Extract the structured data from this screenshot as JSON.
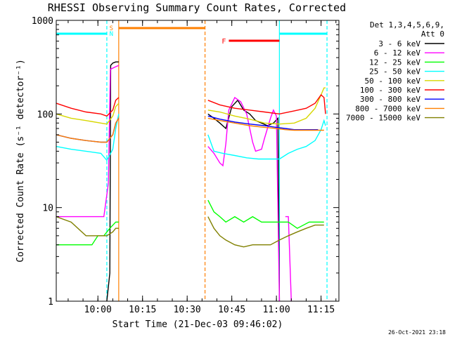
{
  "chart_data": {
    "type": "line",
    "title": "RHESSI Observing Summary Count Rates, Corrected",
    "xlabel": "Start Time (21-Dec-03 09:46:02)",
    "ylabel": "Corrected Count Rate (s⁻¹ detector⁻¹)",
    "y_scale": "log",
    "xlim": [
      0,
      95
    ],
    "ylim": [
      1,
      1000
    ],
    "x_ticks": [
      {
        "value": 14,
        "label": "10:00"
      },
      {
        "value": 29,
        "label": "10:15"
      },
      {
        "value": 44,
        "label": "10:30"
      },
      {
        "value": 59,
        "label": "10:45"
      },
      {
        "value": 74,
        "label": "11:00"
      },
      {
        "value": 89,
        "label": "11:15"
      }
    ],
    "y_ticks": [
      {
        "value": 1,
        "label": "1"
      },
      {
        "value": 10,
        "label": "10"
      },
      {
        "value": 100,
        "label": "100"
      },
      {
        "value": 1000,
        "label": "1000"
      }
    ],
    "legend_header": [
      "Det 1,3,4,5,6,9,",
      "Att 0"
    ],
    "series": [
      {
        "name": "3 - 6 keV",
        "color": "#000000",
        "segments": [
          [
            [
              17,
              1
            ],
            [
              18,
              2
            ],
            [
              18.3,
              330
            ],
            [
              19,
              350
            ],
            [
              20,
              360
            ],
            [
              21,
              360
            ]
          ],
          [
            [
              51,
              100
            ],
            [
              53,
              90
            ],
            [
              55,
              80
            ],
            [
              57,
              70
            ],
            [
              59,
              120
            ],
            [
              61,
              140
            ],
            [
              63,
              110
            ],
            [
              65,
              100
            ],
            [
              67,
              85
            ],
            [
              69,
              80
            ],
            [
              71,
              75
            ],
            [
              73,
              80
            ],
            [
              74.5,
              90
            ],
            [
              75,
              1
            ]
          ]
        ]
      },
      {
        "name": "6 - 12 keV",
        "color": "#ff00ff",
        "segments": [
          [
            [
              0,
              8
            ],
            [
              16,
              8
            ],
            [
              17.5,
              18
            ],
            [
              18.2,
              300
            ],
            [
              20,
              320
            ],
            [
              21,
              330
            ]
          ],
          [
            [
              51,
              45
            ],
            [
              53,
              38
            ],
            [
              55,
              30
            ],
            [
              56,
              28
            ],
            [
              57,
              48
            ],
            [
              58,
              110
            ],
            [
              60,
              150
            ],
            [
              62,
              135
            ],
            [
              64,
              100
            ],
            [
              66,
              50
            ],
            [
              67,
              40
            ],
            [
              69,
              42
            ],
            [
              70,
              55
            ],
            [
              72,
              90
            ],
            [
              73,
              110
            ],
            [
              74,
              95
            ],
            [
              75,
              1
            ]
          ],
          [
            [
              77,
              8
            ],
            [
              78,
              8
            ],
            [
              79,
              1
            ]
          ]
        ]
      },
      {
        "name": "12 - 25 keV",
        "color": "#00ff00",
        "segments": [
          [
            [
              0,
              4
            ],
            [
              12,
              4
            ],
            [
              14,
              5
            ],
            [
              16,
              5
            ],
            [
              18,
              6
            ],
            [
              20,
              7
            ],
            [
              21,
              7
            ]
          ],
          [
            [
              51,
              12
            ],
            [
              53,
              9
            ],
            [
              55,
              8
            ],
            [
              57,
              7
            ],
            [
              60,
              8
            ],
            [
              63,
              7
            ],
            [
              66,
              8
            ],
            [
              69,
              7
            ],
            [
              72,
              7
            ],
            [
              75,
              7
            ],
            [
              78,
              7
            ],
            [
              81,
              6
            ],
            [
              85,
              7
            ],
            [
              88,
              7
            ],
            [
              90,
              7
            ]
          ]
        ]
      },
      {
        "name": "25 - 50 keV",
        "color": "#00ffff",
        "segments": [
          [
            [
              0,
              45
            ],
            [
              5,
              42
            ],
            [
              10,
              40
            ],
            [
              15,
              38
            ],
            [
              17,
              32
            ],
            [
              19,
              42
            ],
            [
              20,
              70
            ],
            [
              21,
              100
            ]
          ],
          [
            [
              51,
              60
            ],
            [
              53,
              40
            ],
            [
              56,
              38
            ],
            [
              60,
              36
            ],
            [
              64,
              34
            ],
            [
              68,
              33
            ],
            [
              72,
              33
            ],
            [
              75,
              33
            ],
            [
              78,
              38
            ],
            [
              81,
              42
            ],
            [
              84,
              45
            ],
            [
              87,
              52
            ],
            [
              89,
              68
            ],
            [
              90,
              85
            ],
            [
              90.5,
              75
            ]
          ]
        ]
      },
      {
        "name": "50 - 100 keV",
        "color": "#d7d700",
        "segments": [
          [
            [
              0,
              100
            ],
            [
              5,
              90
            ],
            [
              10,
              85
            ],
            [
              15,
              80
            ],
            [
              17,
              78
            ],
            [
              19,
              95
            ],
            [
              20,
              120
            ],
            [
              21,
              130
            ]
          ],
          [
            [
              51,
              110
            ],
            [
              55,
              105
            ],
            [
              60,
              95
            ],
            [
              65,
              88
            ],
            [
              70,
              80
            ],
            [
              75,
              78
            ],
            [
              80,
              80
            ],
            [
              84,
              90
            ],
            [
              87,
              115
            ],
            [
              89,
              160
            ],
            [
              90,
              190
            ],
            [
              90.5,
              190
            ]
          ]
        ]
      },
      {
        "name": "100 - 300 keV",
        "color": "#ff0000",
        "segments": [
          [
            [
              0,
              130
            ],
            [
              5,
              115
            ],
            [
              10,
              105
            ],
            [
              15,
              100
            ],
            [
              17,
              95
            ],
            [
              19,
              110
            ],
            [
              20,
              140
            ],
            [
              21,
              150
            ]
          ],
          [
            [
              51,
              140
            ],
            [
              55,
              125
            ],
            [
              60,
              115
            ],
            [
              65,
              110
            ],
            [
              70,
              105
            ],
            [
              75,
              100
            ],
            [
              80,
              108
            ],
            [
              84,
              115
            ],
            [
              87,
              130
            ],
            [
              89,
              160
            ],
            [
              90,
              150
            ],
            [
              90.5,
              100
            ]
          ]
        ]
      },
      {
        "name": "300 - 800 keV",
        "color": "#0000ff",
        "segments": [
          [
            [
              0,
              60
            ],
            [
              5,
              55
            ],
            [
              10,
              52
            ],
            [
              15,
              50
            ],
            [
              17,
              50
            ],
            [
              19,
              60
            ],
            [
              20,
              80
            ],
            [
              21,
              90
            ]
          ],
          [
            [
              51,
              95
            ],
            [
              55,
              88
            ],
            [
              60,
              82
            ],
            [
              65,
              78
            ],
            [
              70,
              75
            ],
            [
              74,
              72
            ],
            [
              77,
              70
            ],
            [
              80,
              68
            ],
            [
              84,
              68
            ],
            [
              88,
              68
            ]
          ]
        ]
      },
      {
        "name": "800 - 7000 keV",
        "color": "#ff8000",
        "segments": [
          [
            [
              0,
              60
            ],
            [
              5,
              55
            ],
            [
              10,
              52
            ],
            [
              15,
              50
            ],
            [
              17,
              50
            ],
            [
              19,
              60
            ],
            [
              20,
              80
            ],
            [
              21,
              90
            ]
          ],
          [
            [
              51,
              90
            ],
            [
              55,
              85
            ],
            [
              60,
              80
            ],
            [
              65,
              75
            ],
            [
              70,
              72
            ],
            [
              74,
              70
            ],
            [
              77,
              68
            ],
            [
              80,
              67
            ],
            [
              84,
              67
            ],
            [
              88,
              67
            ],
            [
              90,
              67
            ]
          ]
        ]
      },
      {
        "name": "7000 - 15000 keV",
        "color": "#808000",
        "segments": [
          [
            [
              0,
              8
            ],
            [
              5,
              7
            ],
            [
              10,
              5
            ],
            [
              15,
              5
            ],
            [
              17,
              5
            ],
            [
              19,
              5.5
            ],
            [
              20,
              6
            ],
            [
              21,
              6
            ]
          ],
          [
            [
              51,
              8
            ],
            [
              53,
              6
            ],
            [
              55,
              5
            ],
            [
              57,
              4.5
            ],
            [
              60,
              4
            ],
            [
              63,
              3.8
            ],
            [
              66,
              4
            ],
            [
              69,
              4
            ],
            [
              72,
              4
            ],
            [
              75,
              4.5
            ],
            [
              78,
              5
            ],
            [
              81,
              5.5
            ],
            [
              84,
              6
            ],
            [
              87,
              6.5
            ],
            [
              90,
              6.5
            ]
          ]
        ]
      }
    ],
    "vertical_lines": [
      {
        "x": 17,
        "color": "#00ffff",
        "style": "dashed"
      },
      {
        "x": 21,
        "color": "#ff8000",
        "style": "solid"
      },
      {
        "x": 50,
        "color": "#ff8000",
        "style": "dashed"
      },
      {
        "x": 75,
        "color": "#00ffff",
        "style": "solid"
      },
      {
        "x": 91,
        "color": "#00ffff",
        "style": "dashed"
      }
    ],
    "flag_bars": [
      {
        "x0": 0,
        "x1": 17,
        "color": "#00ffff",
        "label": ""
      },
      {
        "x0": 21,
        "x1": 50,
        "color": "#ff8000",
        "label": ""
      },
      {
        "x0": 58,
        "x1": 75,
        "color": "#ff0000",
        "label": "F"
      },
      {
        "x0": 75,
        "x1": 91,
        "color": "#00ffff",
        "label": ""
      }
    ],
    "flag_letters": [
      {
        "text": "S",
        "x": 18.5,
        "color": "#ff8000"
      },
      {
        "text": "N",
        "x": 18.5,
        "color": "#00ffff"
      }
    ]
  },
  "footer_timestamp": "26-Oct-2021 23:18"
}
